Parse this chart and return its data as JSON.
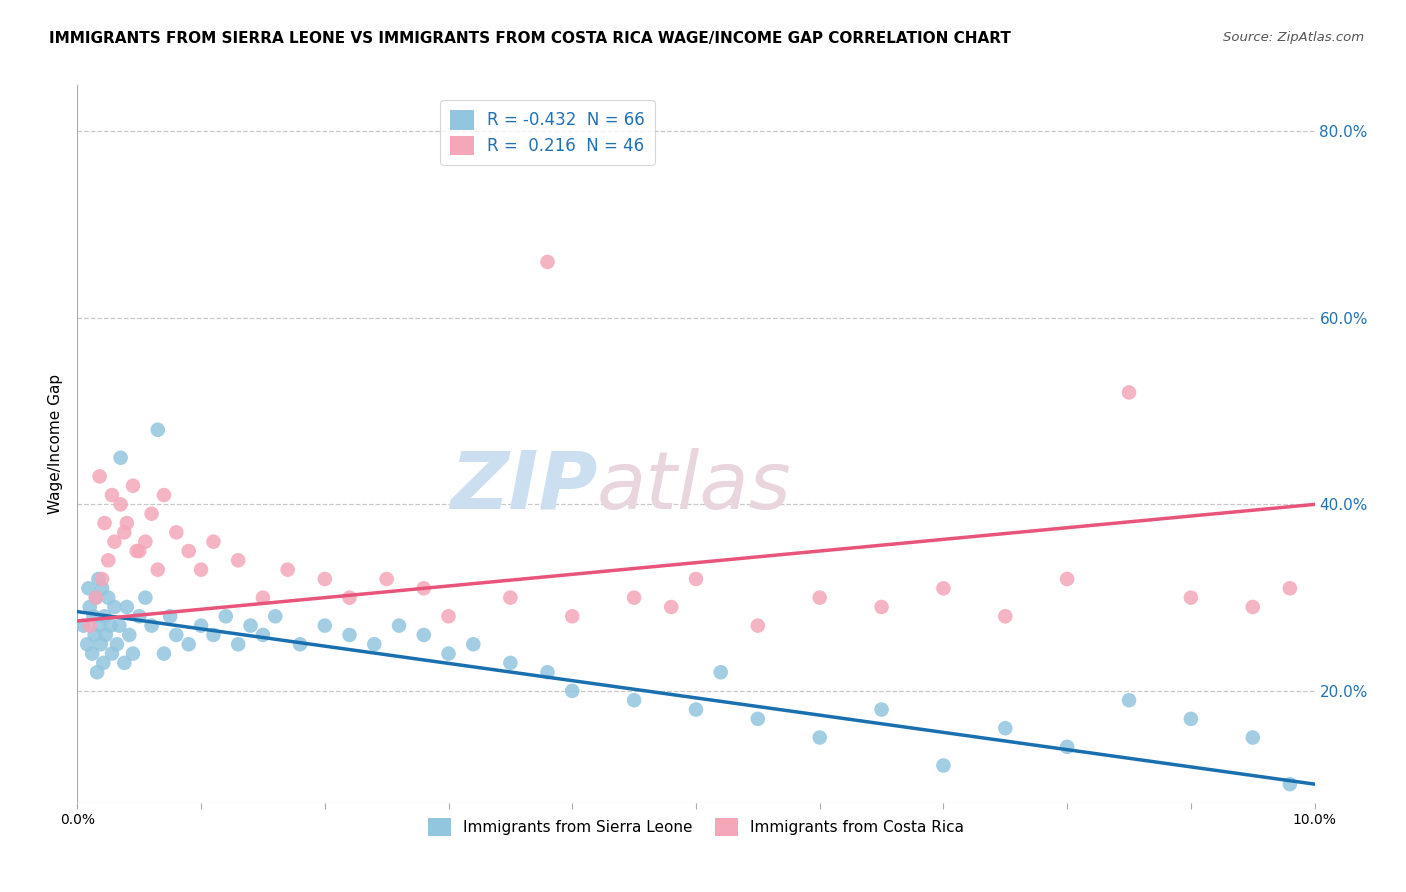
{
  "title": "IMMIGRANTS FROM SIERRA LEONE VS IMMIGRANTS FROM COSTA RICA WAGE/INCOME GAP CORRELATION CHART",
  "source": "Source: ZipAtlas.com",
  "ylabel": "Wage/Income Gap",
  "legend_label_blue": "Immigrants from Sierra Leone",
  "legend_label_pink": "Immigrants from Costa Rica",
  "R_blue": -0.432,
  "N_blue": 66,
  "R_pink": 0.216,
  "N_pink": 46,
  "color_blue": "#92c5de",
  "color_pink": "#f4a7b9",
  "color_blue_line": "#1a6faf",
  "color_pink_line": "#e8547a",
  "xlim": [
    0.0,
    10.0
  ],
  "ylim": [
    8.0,
    85.0
  ],
  "yticks_right": [
    20.0,
    40.0,
    60.0,
    80.0
  ],
  "watermark_zip": "ZIP",
  "watermark_atlas": "atlas",
  "background_color": "#ffffff",
  "title_fontsize": 11,
  "blue_x": [
    0.05,
    0.08,
    0.1,
    0.12,
    0.13,
    0.14,
    0.15,
    0.16,
    0.17,
    0.18,
    0.19,
    0.2,
    0.21,
    0.22,
    0.23,
    0.25,
    0.27,
    0.28,
    0.3,
    0.32,
    0.34,
    0.35,
    0.38,
    0.4,
    0.42,
    0.45,
    0.5,
    0.55,
    0.6,
    0.65,
    0.7,
    0.75,
    0.8,
    0.9,
    1.0,
    1.1,
    1.2,
    1.3,
    1.4,
    1.5,
    1.6,
    1.8,
    2.0,
    2.2,
    2.4,
    2.6,
    2.8,
    3.0,
    3.2,
    3.5,
    3.8,
    4.0,
    4.5,
    5.0,
    5.2,
    5.5,
    6.0,
    6.5,
    7.0,
    7.5,
    8.0,
    8.5,
    9.0,
    9.5,
    9.8,
    0.09
  ],
  "blue_y": [
    27,
    25,
    29,
    24,
    28,
    26,
    30,
    22,
    32,
    27,
    25,
    31,
    23,
    28,
    26,
    30,
    27,
    24,
    29,
    25,
    27,
    45,
    23,
    29,
    26,
    24,
    28,
    30,
    27,
    48,
    24,
    28,
    26,
    25,
    27,
    26,
    28,
    25,
    27,
    26,
    28,
    25,
    27,
    26,
    25,
    27,
    26,
    24,
    25,
    23,
    22,
    20,
    19,
    18,
    22,
    17,
    15,
    18,
    12,
    16,
    14,
    19,
    17,
    15,
    10,
    31
  ],
  "pink_x": [
    0.1,
    0.15,
    0.2,
    0.22,
    0.25,
    0.28,
    0.3,
    0.35,
    0.4,
    0.45,
    0.5,
    0.55,
    0.6,
    0.65,
    0.7,
    0.8,
    0.9,
    1.0,
    1.1,
    1.3,
    1.5,
    1.7,
    2.0,
    2.2,
    2.5,
    2.8,
    3.0,
    3.5,
    3.8,
    4.0,
    4.5,
    4.8,
    5.0,
    5.5,
    6.0,
    6.5,
    7.0,
    7.5,
    8.0,
    8.5,
    9.0,
    9.5,
    9.8,
    0.18,
    0.38,
    0.48
  ],
  "pink_y": [
    27,
    30,
    32,
    38,
    34,
    41,
    36,
    40,
    38,
    42,
    35,
    36,
    39,
    33,
    41,
    37,
    35,
    33,
    36,
    34,
    30,
    33,
    32,
    30,
    32,
    31,
    28,
    30,
    66,
    28,
    30,
    29,
    32,
    27,
    30,
    29,
    31,
    28,
    32,
    52,
    30,
    29,
    31,
    43,
    37,
    35
  ]
}
